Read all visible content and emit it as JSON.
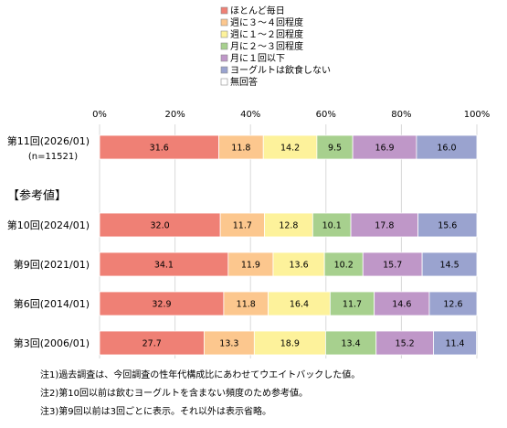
{
  "chart_data": {
    "type": "bar",
    "orientation": "horizontal",
    "stacked": true,
    "xlim": [
      0,
      100
    ],
    "xticks": [
      "0%",
      "20%",
      "40%",
      "60%",
      "80%",
      "100%"
    ],
    "grid": true,
    "legend_position": "top",
    "series": [
      {
        "name": "ほとんど毎日",
        "color": "#ef8075",
        "values": [
          31.6,
          32.0,
          34.1,
          32.9,
          27.7
        ]
      },
      {
        "name": "週に３～４回程度",
        "color": "#fcc78e",
        "values": [
          11.8,
          11.7,
          11.9,
          11.8,
          13.3
        ]
      },
      {
        "name": "週に１～２回程度",
        "color": "#fdf29b",
        "values": [
          14.2,
          12.8,
          13.6,
          16.4,
          18.9
        ]
      },
      {
        "name": "月に２～３回程度",
        "color": "#a7d08e",
        "values": [
          9.5,
          10.1,
          10.2,
          11.7,
          13.4
        ]
      },
      {
        "name": "月に１回以下",
        "color": "#bf97c8",
        "values": [
          16.9,
          17.8,
          15.7,
          14.6,
          15.2
        ]
      },
      {
        "name": "ヨーグルトは飲食しない",
        "color": "#9aa3cf",
        "values": [
          16.0,
          15.6,
          14.5,
          12.6,
          11.4
        ]
      },
      {
        "name": "無回答",
        "color": "#ffffff",
        "values": [
          0,
          0,
          0,
          0,
          0
        ]
      }
    ],
    "categories": [
      {
        "label": "第11回(2026/01)",
        "sublabel": "(n=11521)"
      },
      {
        "label": "第10回(2024/01)",
        "sublabel": ""
      },
      {
        "label": "第9回(2021/01)",
        "sublabel": ""
      },
      {
        "label": "第6回(2014/01)",
        "sublabel": ""
      },
      {
        "label": "第3回(2006/01)",
        "sublabel": ""
      }
    ],
    "section_label": "【参考値】",
    "notes": [
      "注1)過去調査は、今回調査の性年代構成比にあわせてウエイトバックした値。",
      "注2)第10回以前は飲むヨーグルトを含まない頻度のため参考値。",
      "注3)第9回以前は3回ごとに表示。それ以外は表示省略。"
    ]
  }
}
